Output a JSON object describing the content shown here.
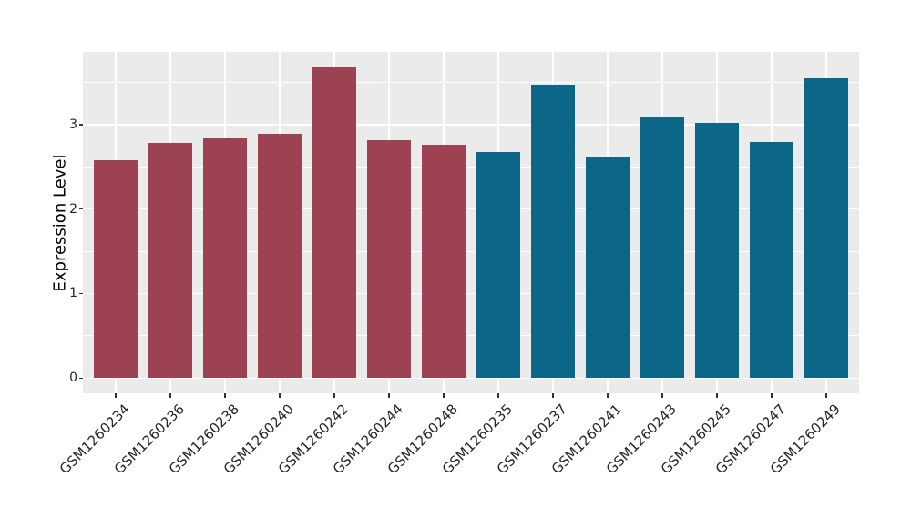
{
  "chart_data": {
    "type": "bar",
    "ylabel": "Expression Level",
    "categories": [
      "GSM1260234",
      "GSM1260236",
      "GSM1260238",
      "GSM1260240",
      "GSM1260242",
      "GSM1260244",
      "GSM1260248",
      "GSM1260235",
      "GSM1260237",
      "GSM1260241",
      "GSM1260243",
      "GSM1260245",
      "GSM1260247",
      "GSM1260249"
    ],
    "values": [
      2.58,
      2.78,
      2.84,
      2.89,
      3.68,
      2.81,
      2.76,
      2.67,
      3.47,
      2.62,
      3.1,
      3.02,
      2.79,
      3.55
    ],
    "bar_colors": [
      "#9C4252",
      "#9C4252",
      "#9C4252",
      "#9C4252",
      "#9C4252",
      "#9C4252",
      "#9C4252",
      "#0B6687",
      "#0B6687",
      "#0B6687",
      "#0B6687",
      "#0B6687",
      "#0B6687",
      "#0B6687"
    ],
    "ylim": [
      -0.18,
      3.86
    ],
    "yticks": [
      0,
      1,
      2,
      3
    ],
    "ytick_labels": [
      "0",
      "1",
      "2",
      "3"
    ],
    "minor_yticks": [
      0.5,
      1.5,
      2.5,
      3.5
    ],
    "grid": true,
    "legend": "none",
    "x_tick_rotation": 45
  },
  "colors": {
    "figure_background": "#FFFFFF",
    "panel_background": "#EBEBEB",
    "gridline": "#FFFFFF",
    "bar_red": "#9C4252",
    "bar_teal": "#0B6687",
    "axis_text": "#262626",
    "axis_title": "#000000",
    "tick_mark": "#333333"
  }
}
